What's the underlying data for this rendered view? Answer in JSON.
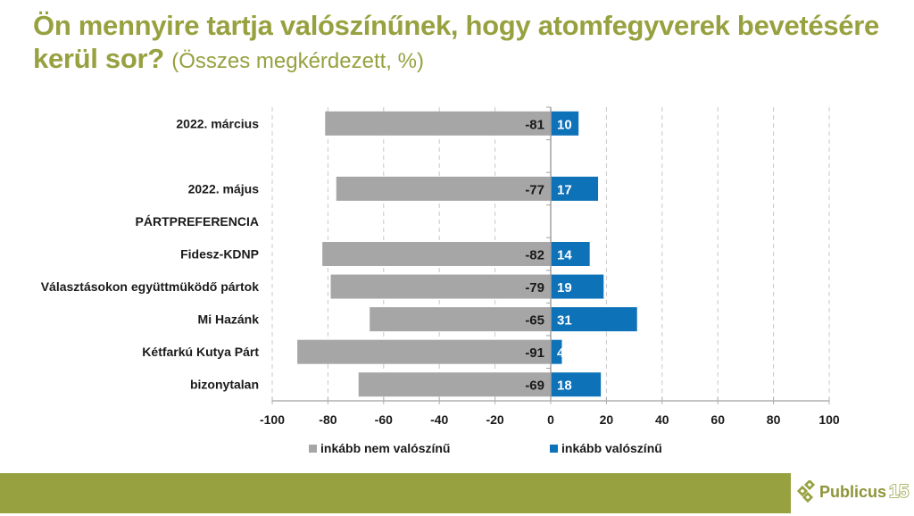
{
  "title": {
    "main": "Ön mennyire tartja valószínűnek, hogy atomfegyverek bevetésére kerül sor?",
    "subtitle": "(Összes megkérdezett, %)"
  },
  "colors": {
    "title": "#97a13f",
    "negative_series": "#a6a6a6",
    "positive_series": "#0e72b9",
    "footer": "#97a13f",
    "grid": "#c8c8c8"
  },
  "chart_data": {
    "type": "bar",
    "orientation": "horizontal",
    "stacked": "diverging",
    "title": "Ön mennyire tartja valószínűnek, hogy atomfegyverek bevetésére kerül sor? (Összes megkérdezett, %)",
    "categories": [
      "2022. március",
      "",
      "2022. május",
      "PÁRTPREFERENCIA",
      "Fidesz-KDNP",
      "Választásokon együttmüködő pártok",
      "Mi Hazánk",
      "Kétfarkú Kutya Párt",
      "bizonytalan"
    ],
    "series": [
      {
        "name": "inkább nem valószínű",
        "color": "#a6a6a6",
        "values": [
          -81,
          null,
          -77,
          null,
          -82,
          -79,
          -65,
          -91,
          -69
        ]
      },
      {
        "name": "inkább valószínű",
        "color": "#0e72b9",
        "values": [
          10,
          null,
          17,
          null,
          14,
          19,
          31,
          4,
          18
        ]
      }
    ],
    "xlim": [
      -100,
      100
    ],
    "xticks": [
      -100,
      -80,
      -60,
      -40,
      -20,
      0,
      20,
      40,
      60,
      80,
      100
    ],
    "xtick_labels": [
      "-100",
      "-80",
      "-60",
      "-40",
      "-20",
      "0",
      "20",
      "40",
      "60",
      "80",
      "100"
    ],
    "xlabel": "",
    "ylabel": "",
    "grid": "vertical dashed",
    "legend_position": "bottom",
    "data_labels": true
  },
  "footer": {
    "logo_text": "Publicus",
    "logo_number": "15"
  }
}
